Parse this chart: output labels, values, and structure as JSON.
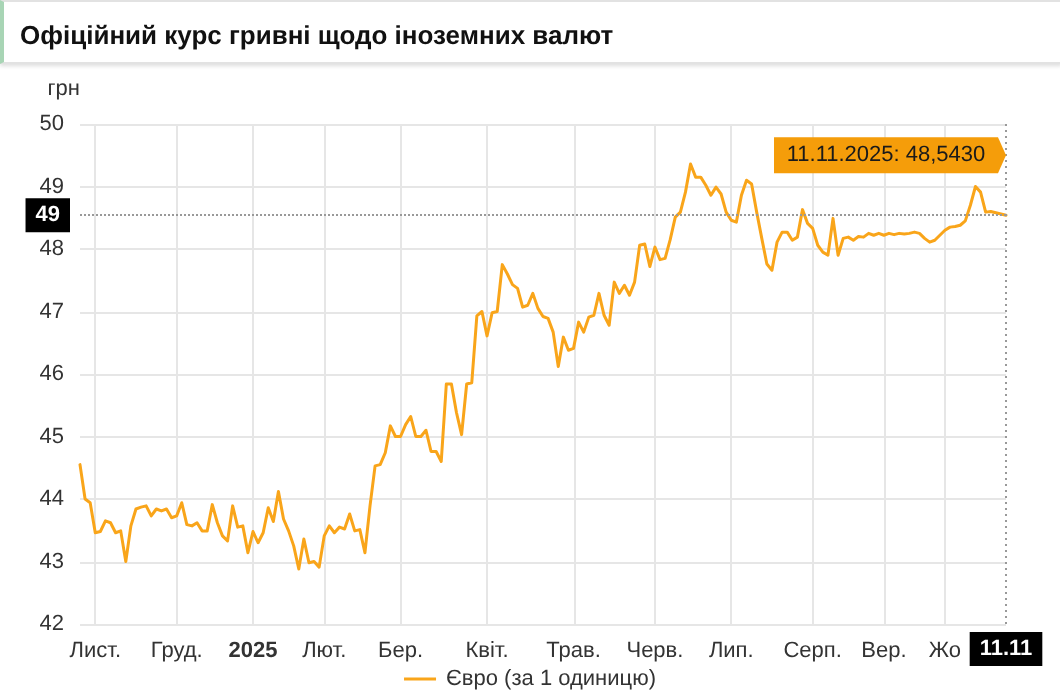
{
  "chart_data": {
    "type": "line",
    "title": "Офіційний курс гривні щодо іноземних валют",
    "ylabel": "грн",
    "ylim": [
      42,
      50
    ],
    "yticks": [
      42,
      43,
      44,
      45,
      46,
      47,
      48,
      49,
      50
    ],
    "categories": [
      null,
      null,
      null,
      "Лист.",
      null,
      null,
      null,
      null,
      null,
      null,
      null,
      null,
      null,
      null,
      null,
      null,
      null,
      null,
      null,
      "Груд.",
      null,
      null,
      null,
      null,
      null,
      null,
      null,
      null,
      null,
      null,
      null,
      null,
      null,
      null,
      "2025",
      null,
      null,
      null,
      null,
      null,
      null,
      null,
      null,
      null,
      null,
      null,
      null,
      null,
      "Лют.",
      null,
      null,
      null,
      null,
      null,
      null,
      null,
      null,
      null,
      null,
      null,
      null,
      null,
      null,
      "Бер.",
      null,
      null,
      null,
      null,
      null,
      null,
      null,
      null,
      null,
      null,
      null,
      null,
      null,
      null,
      null,
      null,
      "Квіт.",
      null,
      null,
      null,
      null,
      null,
      null,
      null,
      null,
      null,
      null,
      null,
      null,
      null,
      null,
      null,
      null,
      "Трав.",
      null,
      null,
      null,
      null,
      null,
      null,
      null,
      null,
      null,
      null,
      null,
      null,
      null,
      null,
      null,
      "Черв.",
      null,
      null,
      null,
      null,
      null,
      null,
      null,
      null,
      null,
      null,
      null,
      null,
      null,
      null,
      "Лип.",
      null,
      null,
      null,
      null,
      null,
      null,
      null,
      null,
      null,
      null,
      null,
      null,
      null,
      null,
      null,
      "Серп.",
      null,
      null,
      null,
      null,
      null,
      null,
      null,
      null,
      null,
      null,
      null,
      null,
      null,
      "Вер.",
      null,
      null,
      null,
      null,
      null,
      null,
      null,
      null,
      null,
      null,
      null,
      "Жо",
      null,
      null,
      null,
      null,
      null,
      null,
      null,
      null,
      null,
      null,
      null,
      null
    ],
    "grid": true,
    "legend": "bottom",
    "marker": "none",
    "line_style": "solid",
    "ref_lines": [
      {
        "axis": "y",
        "value": 48.54,
        "label": "49",
        "color": "#999999",
        "line_style": "dotted"
      }
    ],
    "annotations": [
      "11.11.2025: 48,5430",
      "11.11"
    ],
    "series": [
      {
        "name": "Євро (за 1 одиницю)",
        "color": "#f9a51a",
        "values": [
          44.55,
          44.0,
          43.94,
          43.46,
          43.48,
          43.65,
          43.62,
          43.46,
          43.49,
          43.0,
          43.57,
          43.84,
          43.87,
          43.89,
          43.73,
          43.84,
          43.81,
          43.84,
          43.7,
          43.73,
          43.94,
          43.59,
          43.57,
          43.62,
          43.49,
          43.49,
          43.91,
          43.62,
          43.41,
          43.33,
          43.89,
          43.55,
          43.57,
          43.14,
          43.48,
          43.3,
          43.46,
          43.86,
          43.64,
          44.12,
          43.68,
          43.49,
          43.25,
          42.88,
          43.36,
          42.98,
          43.0,
          42.91,
          43.41,
          43.57,
          43.46,
          43.55,
          43.52,
          43.76,
          43.49,
          43.51,
          43.14,
          43.89,
          44.53,
          44.55,
          44.74,
          45.17,
          45.0,
          45.0,
          45.19,
          45.32,
          45.0,
          45.0,
          45.1,
          44.76,
          44.76,
          44.6,
          45.84,
          45.84,
          45.38,
          45.03,
          45.84,
          45.86,
          46.93,
          47.0,
          46.61,
          46.98,
          47.0,
          47.75,
          47.6,
          47.43,
          47.37,
          47.07,
          47.1,
          47.29,
          47.05,
          46.92,
          46.89,
          46.67,
          46.12,
          46.59,
          46.38,
          46.41,
          46.83,
          46.67,
          46.91,
          46.94,
          47.29,
          46.94,
          46.78,
          47.47,
          47.29,
          47.42,
          47.26,
          47.47,
          48.06,
          48.08,
          47.72,
          48.03,
          47.83,
          47.85,
          48.15,
          48.51,
          48.59,
          48.91,
          49.36,
          49.15,
          49.15,
          49.02,
          48.86,
          48.99,
          48.88,
          48.59,
          48.46,
          48.43,
          48.86,
          49.1,
          49.04,
          48.59,
          48.17,
          47.76,
          47.66,
          48.11,
          48.27,
          48.27,
          48.14,
          48.19,
          48.63,
          48.41,
          48.33,
          48.06,
          47.95,
          47.9,
          48.49,
          47.9,
          48.17,
          48.19,
          48.14,
          48.2,
          48.19,
          48.25,
          48.22,
          48.25,
          48.22,
          48.25,
          48.23,
          48.25,
          48.24,
          48.25,
          48.27,
          48.25,
          48.17,
          48.11,
          48.14,
          48.22,
          48.3,
          48.35,
          48.36,
          48.38,
          48.45,
          48.7,
          49.0,
          48.91,
          48.59,
          48.6,
          48.58,
          48.56,
          48.54
        ]
      }
    ]
  }
}
